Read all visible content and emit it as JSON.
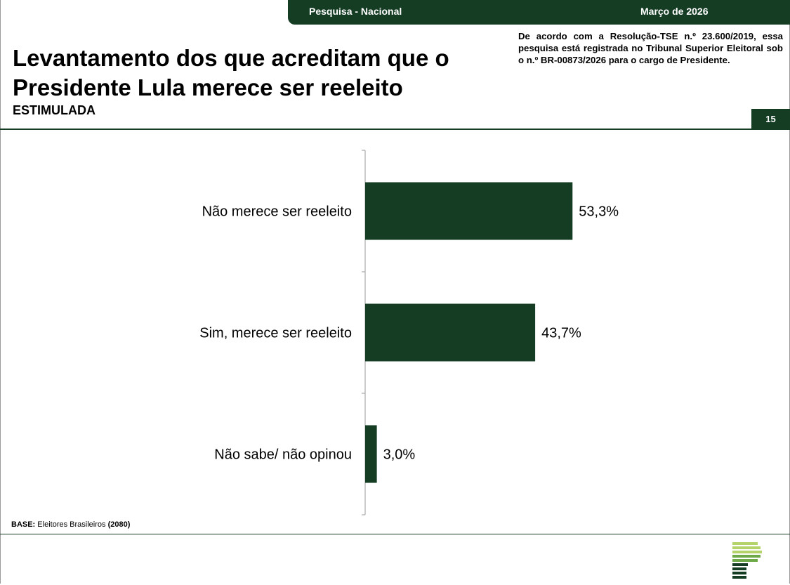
{
  "header": {
    "survey_label": "Pesquisa - Nacional",
    "date_label": "Março de 2026",
    "registry_text": "De acordo com a Resolução-TSE n.º 23.600/2019, essa pesquisa está registrada no Tribunal Superior Eleitoral sob o n.º BR-00873/2026 para o cargo de Presidente.",
    "page_number": "15"
  },
  "slide": {
    "title": "Levantamento dos que acreditam que o Presidente Lula merece ser reeleito",
    "subtitle": "ESTIMULADA"
  },
  "chart_data": {
    "type": "bar",
    "orientation": "horizontal",
    "categories": [
      "Não merece ser reeleito",
      "Sim, merece ser reeleito",
      "Não sabe/ não opinou"
    ],
    "values": [
      53.3,
      43.7,
      3.0
    ],
    "value_labels": [
      "53,3%",
      "43,7%",
      "3,0%"
    ],
    "bar_color": "#143d24",
    "xlim": [
      0,
      100
    ],
    "grid": false,
    "legend": "none"
  },
  "footer": {
    "base_label": "BASE:",
    "base_text": "Eleitores Brasileiros",
    "base_count": "(2080)"
  },
  "colors": {
    "brand_dark_green": "#143d24",
    "logo_green_light": "#b5d36b",
    "logo_green_mid": "#6ea948"
  }
}
